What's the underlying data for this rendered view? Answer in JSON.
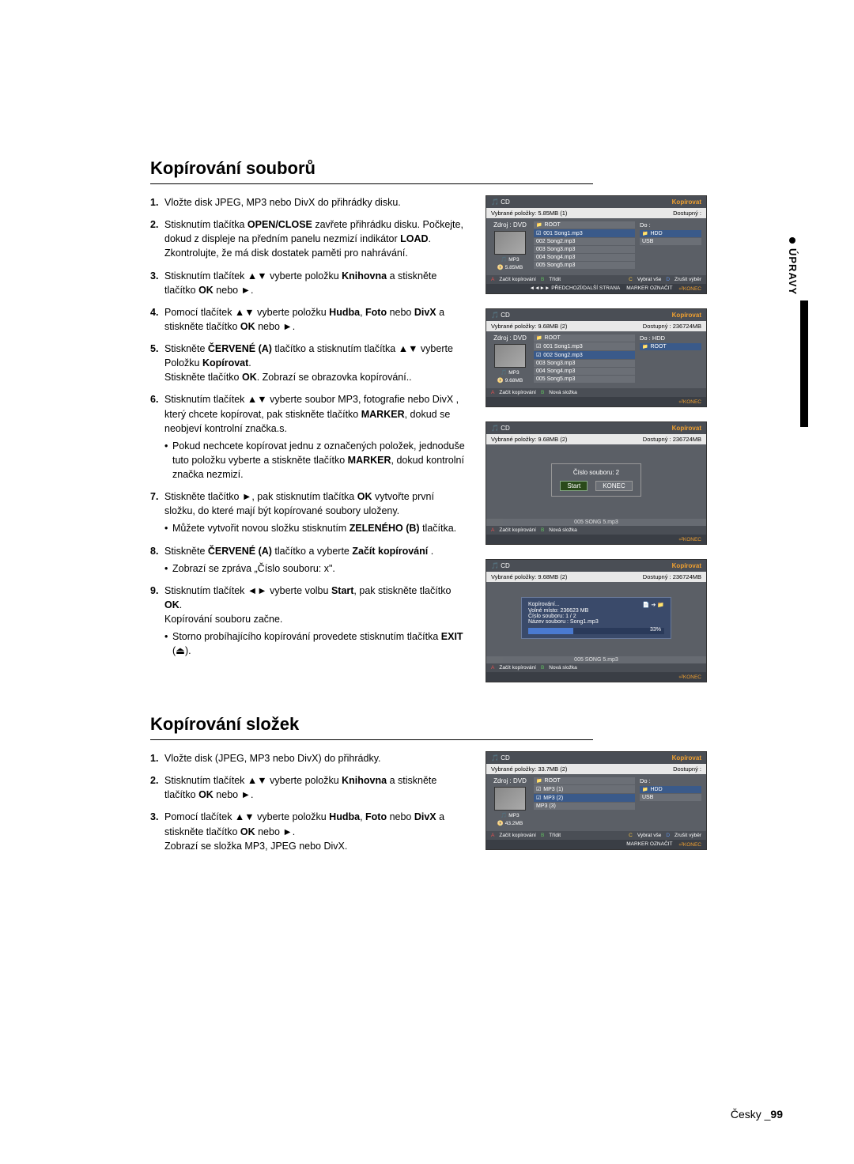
{
  "side_tab": "ÚPRAVY",
  "section1": {
    "title": "Kopírování souborů",
    "steps": [
      {
        "text": "Vložte disk JPEG, MP3 nebo DivX do přihrádky disku."
      },
      {
        "html": "Stisknutím tlačítka <b>OPEN/CLOSE</b> zavřete přihrádku disku. Počkejte, dokud z displeje na předním panelu nezmizí indikátor <b>LOAD</b>. Zkontrolujte, že má disk dostatek paměti pro nahrávání."
      },
      {
        "html": "Stisknutím tlačítek ▲▼ vyberte položku <b>Knihovna</b> a stiskněte tlačítko <b>OK</b> nebo ►."
      },
      {
        "html": "Pomocí tlačítek ▲▼ vyberte položku <b>Hudba</b>, <b>Foto</b> nebo <b>DivX</b> a stiskněte tlačítko <b>OK</b> nebo ►."
      },
      {
        "html": "Stiskněte <b>ČERVENÉ (A)</b> tlačítko a stisknutím tlačítka ▲▼ vyberte Položku <b>Kopírovat</b>.<br>Stiskněte tlačítko <b>OK</b>. Zobrazí se obrazovka kopírování.."
      },
      {
        "html": "Stisknutím tlačítek ▲▼ vyberte soubor MP3, fotografie nebo DivX , který chcete kopírovat, pak stiskněte tlačítko <b>MARKER</b>, dokud se neobjeví kontrolní značka.s.",
        "sub": [
          "Pokud nechcete kopírovat jednu z označených položek, jednoduše tuto položku vyberte a stiskněte tlačítko <b>MARKER</b>, dokud kontrolní značka nezmizí."
        ]
      },
      {
        "html": "Stiskněte tlačítko ►, pak stisknutím tlačítka <b>OK</b> vytvořte první složku, do které mají být kopírované soubory uloženy.",
        "sub": [
          "Můžete vytvořit novou složku stisknutím <b>ZELENÉHO (B)</b> tlačítka."
        ]
      },
      {
        "html": "Stiskněte <b>ČERVENÉ (A)</b> tlačítko a vyberte <b>Začít kopírování</b> .",
        "sub": [
          "Zobrazí se zpráva „Číslo souboru: x\"."
        ]
      },
      {
        "html": "Stisknutím tlačítek ◄► vyberte volbu <b>Start</b>, pak stiskněte tlačítko <b>OK</b>.<br>Kopírování souboru začne.",
        "sub": [
          "Storno probíhajícího kopírování provedete stisknutím tlačítka <b>EXIT</b> (⏏)."
        ]
      }
    ]
  },
  "section2": {
    "title": "Kopírování složek",
    "steps": [
      {
        "text": "Vložte disk (JPEG, MP3 nebo DivX) do přihrádky."
      },
      {
        "html": "Stisknutím tlačítek ▲▼ vyberte položku <b>Knihovna</b> a stiskněte tlačítko <b>OK</b> nebo ►."
      },
      {
        "html": "Pomocí tlačítek ▲▼ vyberte položku <b>Hudba</b>, <b>Foto</b> nebo <b>DivX</b> a stiskněte tlačítko <b>OK</b> nebo ►.<br>Zobrazí se složka MP3, JPEG nebo DivX."
      }
    ]
  },
  "shot_common": {
    "disc_label": "CD",
    "kopirovat": "Kopírovat",
    "zdroj": "Zdroj : DVD",
    "do_lbl": "Do :",
    "do_hdd": "Do : HDD",
    "mp3_badge": "MP3",
    "root": "ROOT",
    "hdd": "HDD",
    "usb": "USB",
    "konec": "KONEC",
    "oznacit": "OZNAČIT",
    "marker": "MARKER",
    "zacit": "Začít kopírování",
    "nova": "Nová složka",
    "tridit": "Třídit",
    "vybrat_vse": "Vybrat vše",
    "zrusit": "Zrušit výběr",
    "predchozi": "PŘEDCHOZÍ/DALŠÍ STRANA"
  },
  "shot1": {
    "left_info": "Vybrané položky: 5.85MB (1)",
    "right_info": "Dostupný :",
    "size_badge": "5.85MB",
    "files": [
      "ROOT",
      "001  Song1.mp3",
      "002  Song2.mp3",
      "003  Song3.mp3",
      "004  Song4.mp3",
      "005  Song5.mp3"
    ],
    "right_items": [
      "HDD",
      "USB"
    ]
  },
  "shot2": {
    "left_info": "Vybrané položky: 9.68MB (2)",
    "right_info": "Dostupný : 236724MB",
    "size_badge": "9.68MB",
    "files": [
      "ROOT",
      "001  Song1.mp3",
      "002  Song2.mp3",
      "003  Song3.mp3",
      "004  Song4.mp3",
      "005  Song5.mp3"
    ],
    "right_items": [
      "ROOT"
    ]
  },
  "shot3": {
    "left_info": "Vybrané položky: 9.68MB (2)",
    "right_info": "Dostupný : 236724MB",
    "dlg_title": "Číslo souboru: 2",
    "start": "Start",
    "cancel": "KONEC",
    "faded": "005  SONG 5.mp3"
  },
  "shot4": {
    "left_info": "Vybrané položky: 9.68MB (2)",
    "right_info": "Dostupný : 236724MB",
    "dlg_title": "Kopírování...",
    "lines": [
      "Volné místo:  236623 MB",
      "Číslo souboru: 1 / 2",
      "Název souboru :  Song1.mp3"
    ],
    "pct_text": "33%",
    "pct_value": 33,
    "faded": "005  SONG 5.mp3"
  },
  "shot5": {
    "left_info": "Vybrané položky: 33.7MB (2)",
    "right_info": "Dostupný :",
    "size_badge": "43.2MB",
    "files": [
      "ROOT",
      "MP3 (1)",
      "MP3 (2)",
      "MP3 (3)"
    ],
    "right_items": [
      "HDD",
      "USB"
    ]
  },
  "footer": {
    "lang": "Česky",
    "page": "99"
  }
}
